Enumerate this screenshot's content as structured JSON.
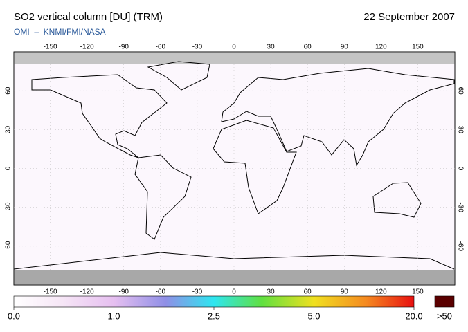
{
  "header": {
    "title": "SO2 vertical column [DU] (TRM)",
    "date": "22 September 2007",
    "source": "OMI  –  KNMI/FMI/NASA"
  },
  "map": {
    "lon_ticks": [
      -150,
      -120,
      -90,
      -60,
      -30,
      0,
      30,
      60,
      90,
      120,
      150
    ],
    "lat_ticks": [
      60,
      30,
      0,
      -30,
      -60
    ]
  },
  "colorbar": {
    "labels": [
      {
        "value": 0,
        "label": "0.0"
      },
      {
        "value": 1,
        "label": "1.0"
      },
      {
        "value": 2.5,
        "label": "2.5"
      },
      {
        "value": 5,
        "label": "5.0"
      },
      {
        "value": 20,
        "label": "20.0"
      }
    ],
    "overflow_label": ">50"
  }
}
